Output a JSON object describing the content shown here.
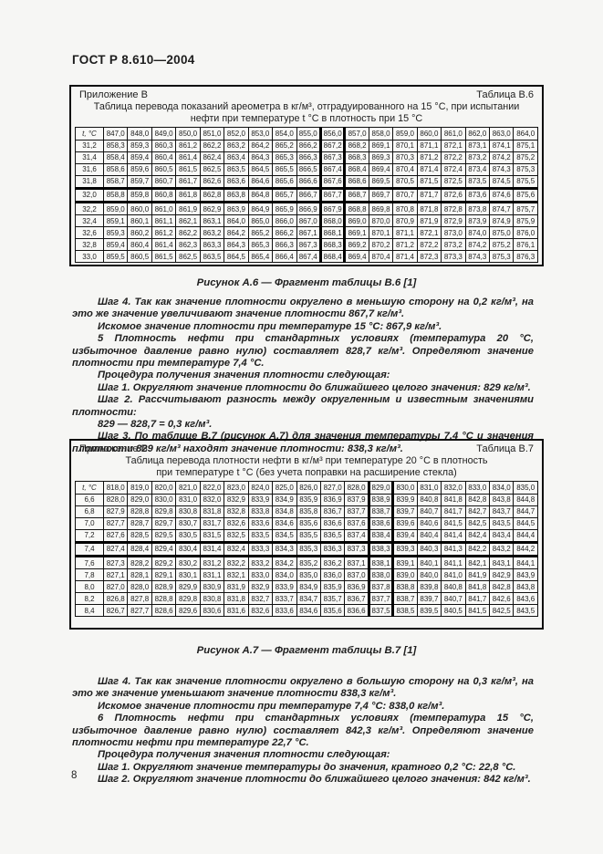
{
  "page": {
    "doc_header": "ГОСТ Р 8.610—2004",
    "page_number": "8"
  },
  "table_b6": {
    "annex": "Приложение В",
    "label": "Таблица В.6",
    "title": "Таблица перевода показаний ареометра в кг/м³, отградуированного на 15 °С, при испытании нефти при температуре t °С в плотность при 15 °С",
    "col_header_first": "t, °С",
    "col_headers": [
      "847,0",
      "848,0",
      "849,0",
      "850,0",
      "851,0",
      "852,0",
      "853,0",
      "854,0",
      "855,0",
      "856,0",
      "857,0",
      "858,0",
      "859,0",
      "860,0",
      "861,0",
      "862,0",
      "863,0",
      "864,0"
    ],
    "rows": [
      {
        "t": "31,2",
        "values": [
          "858,3",
          "859,3",
          "860,3",
          "861,2",
          "862,2",
          "863,2",
          "864,2",
          "865,2",
          "866,2",
          "867,2",
          "868,2",
          "869,1",
          "870,1",
          "871,1",
          "872,1",
          "873,1",
          "874,1",
          "875,1"
        ]
      },
      {
        "t": "31,4",
        "values": [
          "858,4",
          "859,4",
          "860,4",
          "861,4",
          "862,4",
          "863,4",
          "864,3",
          "865,3",
          "866,3",
          "867,3",
          "868,3",
          "869,3",
          "870,3",
          "871,2",
          "872,2",
          "873,2",
          "874,2",
          "875,2"
        ]
      },
      {
        "t": "31,6",
        "values": [
          "858,6",
          "859,6",
          "860,5",
          "861,5",
          "862,5",
          "863,5",
          "864,5",
          "865,5",
          "866,5",
          "867,4",
          "868,4",
          "869,4",
          "870,4",
          "871,4",
          "872,4",
          "873,4",
          "874,3",
          "875,3"
        ]
      },
      {
        "t": "31,8",
        "values": [
          "858,7",
          "859,7",
          "860,7",
          "861,7",
          "862,6",
          "863,6",
          "864,6",
          "865,6",
          "866,6",
          "867,6",
          "868,6",
          "869,5",
          "870,5",
          "871,5",
          "872,5",
          "873,5",
          "874,5",
          "875,5"
        ]
      },
      {
        "t": "32,0",
        "values": [
          "858,8",
          "859,8",
          "860,8",
          "861,8",
          "862,8",
          "863,8",
          "864,8",
          "865,7",
          "866,7",
          "867,7",
          "868,7",
          "869,7",
          "870,7",
          "871,7",
          "872,6",
          "873,6",
          "874,6",
          "875,6"
        ]
      },
      {
        "t": "32,2",
        "values": [
          "859,0",
          "860,0",
          "861,0",
          "861,9",
          "862,9",
          "863,9",
          "864,9",
          "865,9",
          "866,9",
          "867,9",
          "868,8",
          "869,8",
          "870,8",
          "871,8",
          "872,8",
          "873,8",
          "874,7",
          "875,7"
        ]
      },
      {
        "t": "32,4",
        "values": [
          "859,1",
          "860,1",
          "861,1",
          "862,1",
          "863,1",
          "864,0",
          "865,0",
          "866,0",
          "867,0",
          "868,0",
          "869,0",
          "870,0",
          "870,9",
          "871,9",
          "872,9",
          "873,9",
          "874,9",
          "875,9"
        ]
      },
      {
        "t": "32,6",
        "values": [
          "859,3",
          "860,2",
          "861,2",
          "862,2",
          "863,2",
          "864,2",
          "865,2",
          "866,2",
          "867,1",
          "868,1",
          "869,1",
          "870,1",
          "871,1",
          "872,1",
          "873,0",
          "874,0",
          "875,0",
          "876,0"
        ]
      },
      {
        "t": "32,8",
        "values": [
          "859,4",
          "860,4",
          "861,4",
          "862,3",
          "863,3",
          "864,3",
          "865,3",
          "866,3",
          "867,3",
          "868,3",
          "869,2",
          "870,2",
          "871,2",
          "872,2",
          "873,2",
          "874,2",
          "875,2",
          "876,1"
        ]
      },
      {
        "t": "33,0",
        "values": [
          "859,5",
          "860,5",
          "861,5",
          "862,5",
          "863,5",
          "864,5",
          "865,4",
          "866,4",
          "867,4",
          "868,4",
          "869,4",
          "870,4",
          "871,4",
          "872,3",
          "873,3",
          "874,3",
          "875,3",
          "876,3"
        ]
      }
    ],
    "highlight": {
      "column_header": "856,0",
      "column_index": 9,
      "row_label": "32,0",
      "row_index": 4,
      "intersection_value": "867,7"
    }
  },
  "figure_a6": {
    "caption": "Рисунок А.6 — Фрагмент таблицы В.6 [1]"
  },
  "text_block_1": {
    "paragraphs": [
      "Шаг 4. Так как значение плотности округлено в меньшую сторону на 0,2 кг/м³, на это же значение увеличивают значение плотности 867,7 кг/м³.",
      "Искомое значение плотности при температуре 15 °С: 867,9 кг/м³.",
      "5  Плотность нефти при стандартных условиях (температура 20 °С, избыточное давление равно нулю) составляет 828,7 кг/м³. Определяют значение плотности при температуре 7,4 °С.",
      "Процедура получения значения плотности следующая:",
      "Шаг 1. Округляют значение плотности до ближайшего целого значения: 829 кг/м³.",
      "Шаг 2. Рассчитывают разность между округленным и известным значениями плотности:",
      "829 — 828,7 = 0,3 кг/м³.",
      "Шаг 3. По таблице В.7 (рисунок А.7) для значения температуры 7,4 °С и значения плотности 829 кг/м³ находят значение плотности: 838,3 кг/м³."
    ]
  },
  "table_b7": {
    "annex": "Приложение В",
    "label": "Таблица В.7",
    "title": "Таблица перевода плотности нефти в кг/м³ при температуре 20 °С в плотность при температуре t °С (без учета поправки на расширение стекла)",
    "col_header_first": "t, °С",
    "col_headers": [
      "818,0",
      "819,0",
      "820,0",
      "821,0",
      "822,0",
      "823,0",
      "824,0",
      "825,0",
      "826,0",
      "827,0",
      "828,0",
      "829,0",
      "830,0",
      "831,0",
      "832,0",
      "833,0",
      "834,0",
      "835,0"
    ],
    "rows": [
      {
        "t": "6,6",
        "values": [
          "828,0",
          "829,0",
          "830,0",
          "831,0",
          "832,0",
          "832,9",
          "833,9",
          "834,9",
          "835,9",
          "836,9",
          "837,9",
          "838,9",
          "839,9",
          "840,8",
          "841,8",
          "842,8",
          "843,8",
          "844,8"
        ]
      },
      {
        "t": "6,8",
        "values": [
          "827,9",
          "828,8",
          "829,8",
          "830,8",
          "831,8",
          "832,8",
          "833,8",
          "834,8",
          "835,8",
          "836,7",
          "837,7",
          "838,7",
          "839,7",
          "840,7",
          "841,7",
          "842,7",
          "843,7",
          "844,7"
        ]
      },
      {
        "t": "7,0",
        "values": [
          "827,7",
          "828,7",
          "829,7",
          "830,7",
          "831,7",
          "832,6",
          "833,6",
          "834,6",
          "835,6",
          "836,6",
          "837,6",
          "838,6",
          "839,6",
          "840,6",
          "841,5",
          "842,5",
          "843,5",
          "844,5"
        ]
      },
      {
        "t": "7,2",
        "values": [
          "827,6",
          "828,5",
          "829,5",
          "830,5",
          "831,5",
          "832,5",
          "833,5",
          "834,5",
          "835,5",
          "836,5",
          "837,4",
          "838,4",
          "839,4",
          "840,4",
          "841,4",
          "842,4",
          "843,4",
          "844,4"
        ]
      },
      {
        "t": "7,4",
        "values": [
          "827,4",
          "828,4",
          "829,4",
          "830,4",
          "831,4",
          "832,4",
          "833,3",
          "834,3",
          "835,3",
          "836,3",
          "837,3",
          "838,3",
          "839,3",
          "840,3",
          "841,3",
          "842,2",
          "843,2",
          "844,2"
        ]
      },
      {
        "t": "7,6",
        "values": [
          "827,3",
          "828,2",
          "829,2",
          "830,2",
          "831,2",
          "832,2",
          "833,2",
          "834,2",
          "835,2",
          "836,2",
          "837,1",
          "838,1",
          "839,1",
          "840,1",
          "841,1",
          "842,1",
          "843,1",
          "844,1"
        ]
      },
      {
        "t": "7,8",
        "values": [
          "827,1",
          "828,1",
          "829,1",
          "830,1",
          "831,1",
          "832,1",
          "833,0",
          "834,0",
          "835,0",
          "836,0",
          "837,0",
          "838,0",
          "839,0",
          "840,0",
          "841,0",
          "841,9",
          "842,9",
          "843,9"
        ]
      },
      {
        "t": "8,0",
        "values": [
          "827,0",
          "828,0",
          "828,9",
          "829,9",
          "830,9",
          "831,9",
          "832,9",
          "833,9",
          "834,9",
          "835,9",
          "836,9",
          "837,8",
          "838,8",
          "839,8",
          "840,8",
          "841,8",
          "842,8",
          "843,8"
        ]
      },
      {
        "t": "8,2",
        "values": [
          "826,8",
          "827,8",
          "828,8",
          "829,8",
          "830,8",
          "831,8",
          "832,7",
          "833,7",
          "834,7",
          "835,7",
          "836,7",
          "837,7",
          "838,7",
          "839,7",
          "840,7",
          "841,7",
          "842,6",
          "843,6"
        ]
      },
      {
        "t": "8,4",
        "values": [
          "826,7",
          "827,7",
          "828,6",
          "829,6",
          "830,6",
          "831,6",
          "832,6",
          "833,6",
          "834,6",
          "835,6",
          "836,6",
          "837,5",
          "838,5",
          "839,5",
          "840,5",
          "841,5",
          "842,5",
          "843,5"
        ]
      }
    ],
    "highlight": {
      "column_header": "829,0",
      "column_index": 11,
      "row_label": "7,4",
      "row_index": 4,
      "intersection_value": "838,3"
    }
  },
  "figure_a7": {
    "caption": "Рисунок А.7 — Фрагмент таблицы В.7 [1]"
  },
  "text_block_2": {
    "paragraphs": [
      "Шаг 4. Так как значение плотности округлено в большую сторону на 0,3 кг/м³, на это же значение уменьшают значение плотности 838,3 кг/м³.",
      "Искомое значение плотности при температуре 7,4 °С: 838,0 кг/м³.",
      "6  Плотность нефти при стандартных условиях (температура 15 °С, избыточное давление равно нулю) составляет 842,3 кг/м³. Определяют значение плотности нефти при температуре 22,7 °С.",
      "Процедура получения значения плотности следующая:",
      "Шаг 1. Округляют значение температуры до значения, кратного 0,2 °С: 22,8 °С.",
      "Шаг 2. Округляют значение плотности до ближайшего целого значения: 842 кг/м³."
    ]
  }
}
